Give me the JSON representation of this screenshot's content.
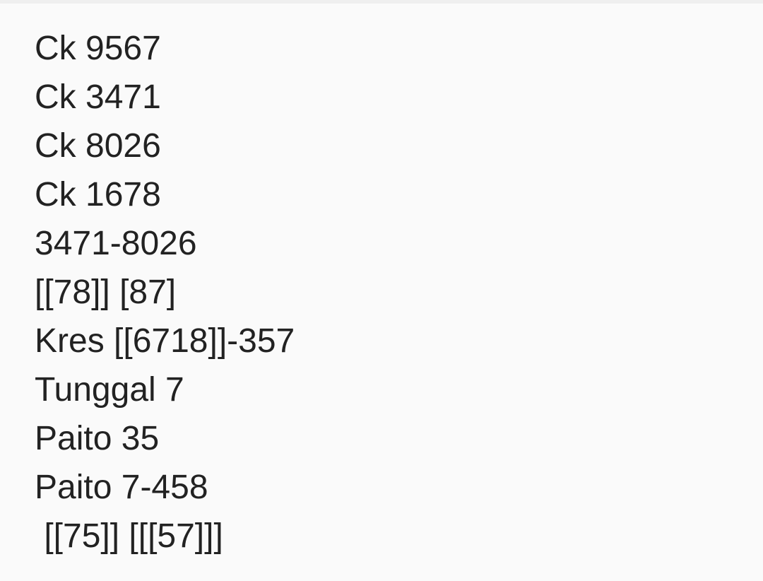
{
  "lines": [
    "Ck 9567",
    "Ck 3471",
    "Ck 8026",
    "Ck 1678",
    "3471-8026",
    "[[78]] [87]",
    "Kres [[6718]]-357",
    "Tunggal 7",
    "Paito 35",
    "Paito 7-458",
    " [[75]] [[[57]]]"
  ],
  "colors": {
    "text": "#222222",
    "background": "#fafafa"
  }
}
